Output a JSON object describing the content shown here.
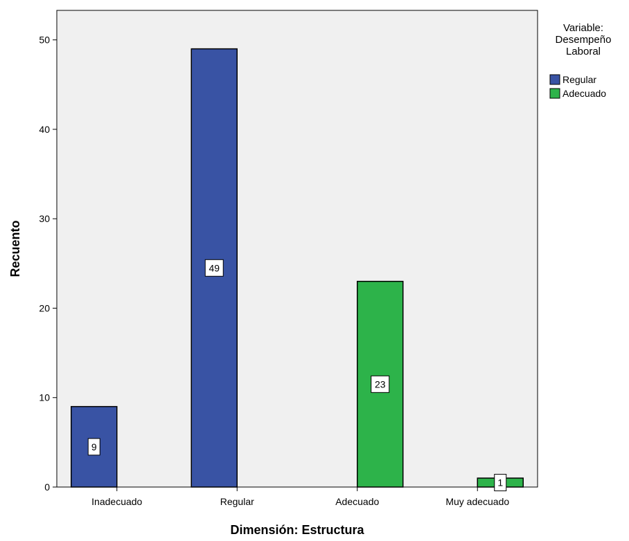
{
  "chart_data": {
    "type": "bar",
    "xlabel": "Dimensión: Estructura",
    "ylabel": "Recuento",
    "categories": [
      "Inadecuado",
      "Regular",
      "Adecuado",
      "Muy adecuado"
    ],
    "ylim": [
      0,
      53.3
    ],
    "yticks": [
      0,
      10,
      20,
      30,
      40,
      50
    ],
    "grid": false,
    "legend": {
      "title": [
        "Variable:",
        "Desempeño",
        "Laboral"
      ],
      "placement": "right"
    },
    "series": [
      {
        "name": "Regular",
        "color": "#3953a4",
        "values": [
          9,
          49,
          null,
          null
        ]
      },
      {
        "name": "Adecuado",
        "color": "#2db34a",
        "values": [
          null,
          null,
          23,
          1
        ]
      }
    ],
    "colors": {
      "plot_background": "#f0f0f0",
      "axis": "#000000",
      "bar_edge": "#000000"
    }
  }
}
